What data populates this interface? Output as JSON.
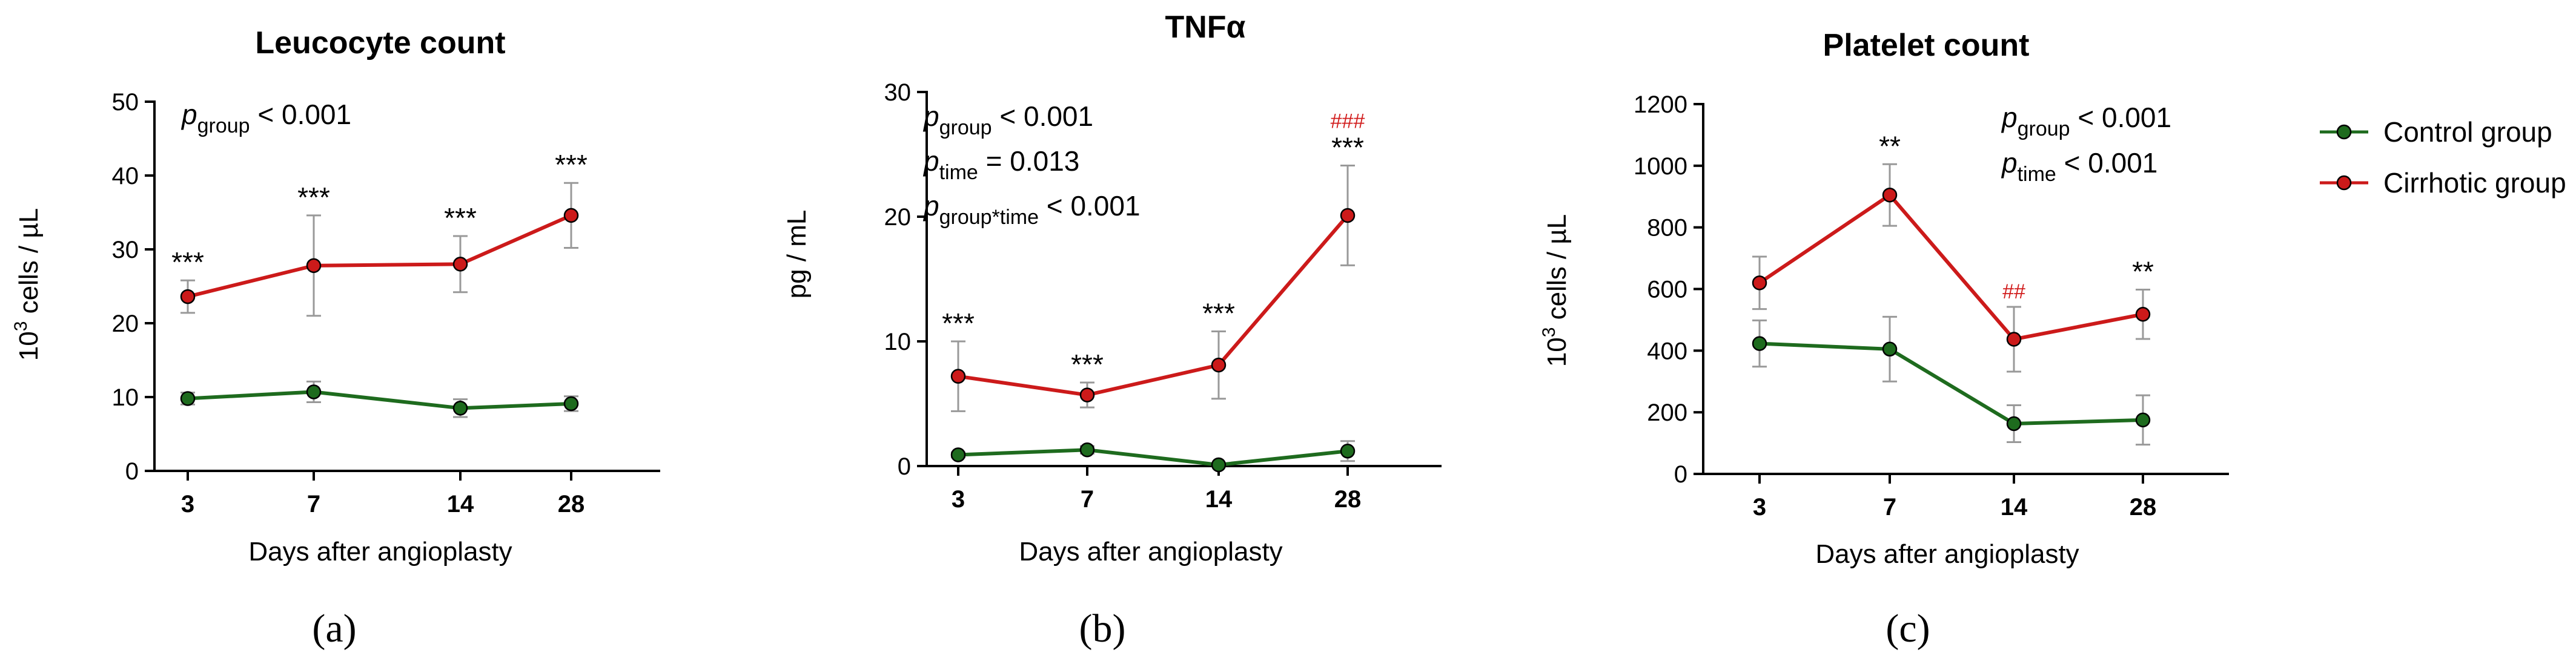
{
  "series_styles": {
    "control": {
      "name": "Control group",
      "color": "#1e6b1e"
    },
    "cirrhotic": {
      "name": "Cirrhotic group",
      "color": "#cc1a1a"
    },
    "error_color": "#999999",
    "axis_color": "#000000"
  },
  "legend": {
    "control_label": "Control group",
    "cirrhotic_label": "Cirrhotic group"
  },
  "chart_data": [
    {
      "panel": "(a)",
      "type": "line",
      "title": "Leucocyte count",
      "xlabel": "Days after angioplasty",
      "ylabel_base": "10",
      "ylabel_sup": "3",
      "ylabel_rest": " cells / µL",
      "categories": [
        "3",
        "7",
        "14",
        "28"
      ],
      "ylim": [
        0,
        50
      ],
      "yticks": [
        0,
        10,
        20,
        30,
        40,
        50
      ],
      "series": [
        {
          "name": "Control group",
          "values": [
            9.8,
            10.7,
            8.5,
            9.1
          ],
          "err": [
            0.8,
            1.4,
            1.2,
            1.0
          ]
        },
        {
          "name": "Cirrhotic group",
          "values": [
            23.6,
            27.8,
            28.0,
            34.6
          ],
          "err": [
            2.2,
            6.8,
            3.8,
            4.4
          ]
        }
      ],
      "significance": [
        "***",
        "***",
        "***",
        "***"
      ],
      "hashes": [
        "",
        "",
        "",
        ""
      ],
      "stats": [
        {
          "p": "p",
          "sub": "group",
          "rest": " < 0.001"
        }
      ]
    },
    {
      "panel": "(b)",
      "type": "line",
      "title": "TNFα",
      "xlabel": "Days after angioplasty",
      "ylabel_base": "pg / mL",
      "ylabel_sup": "",
      "ylabel_rest": "",
      "categories": [
        "3",
        "7",
        "14",
        "28"
      ],
      "ylim": [
        0,
        30
      ],
      "yticks": [
        0,
        10,
        20,
        30
      ],
      "series": [
        {
          "name": "Control group",
          "values": [
            0.9,
            1.3,
            0.1,
            1.2
          ],
          "err": [
            0.2,
            0.3,
            0.1,
            0.8
          ]
        },
        {
          "name": "Cirrhotic group",
          "values": [
            7.2,
            5.7,
            8.1,
            20.1
          ],
          "err": [
            2.8,
            1.0,
            2.7,
            4.0
          ]
        }
      ],
      "significance": [
        "***",
        "***",
        "***",
        "***"
      ],
      "hashes": [
        "",
        "",
        "",
        "###"
      ],
      "stats": [
        {
          "p": "p",
          "sub": "group",
          "rest": " < 0.001"
        },
        {
          "p": "p",
          "sub": "time",
          "rest": " = 0.013"
        },
        {
          "p": "p",
          "sub": "group*time",
          "rest": " < 0.001"
        }
      ]
    },
    {
      "panel": "(c)",
      "type": "line",
      "title": "Platelet count",
      "xlabel": "Days after angioplasty",
      "ylabel_base": "10",
      "ylabel_sup": "3",
      "ylabel_rest": " cells / µL",
      "categories": [
        "3",
        "7",
        "14",
        "28"
      ],
      "ylim": [
        0,
        1200
      ],
      "yticks": [
        0,
        200,
        400,
        600,
        800,
        1000,
        1200
      ],
      "series": [
        {
          "name": "Control group",
          "values": [
            423,
            405,
            163,
            175
          ],
          "err": [
            75,
            105,
            60,
            80
          ]
        },
        {
          "name": "Cirrhotic group",
          "values": [
            620,
            905,
            437,
            518
          ],
          "err": [
            85,
            100,
            105,
            80
          ]
        }
      ],
      "significance": [
        "",
        "**",
        "",
        "**"
      ],
      "hashes": [
        "",
        "",
        "##",
        ""
      ],
      "stats": [
        {
          "p": "p",
          "sub": "group",
          "rest": " < 0.001"
        },
        {
          "p": "p",
          "sub": "time",
          "rest": " < 0.001"
        }
      ]
    }
  ]
}
